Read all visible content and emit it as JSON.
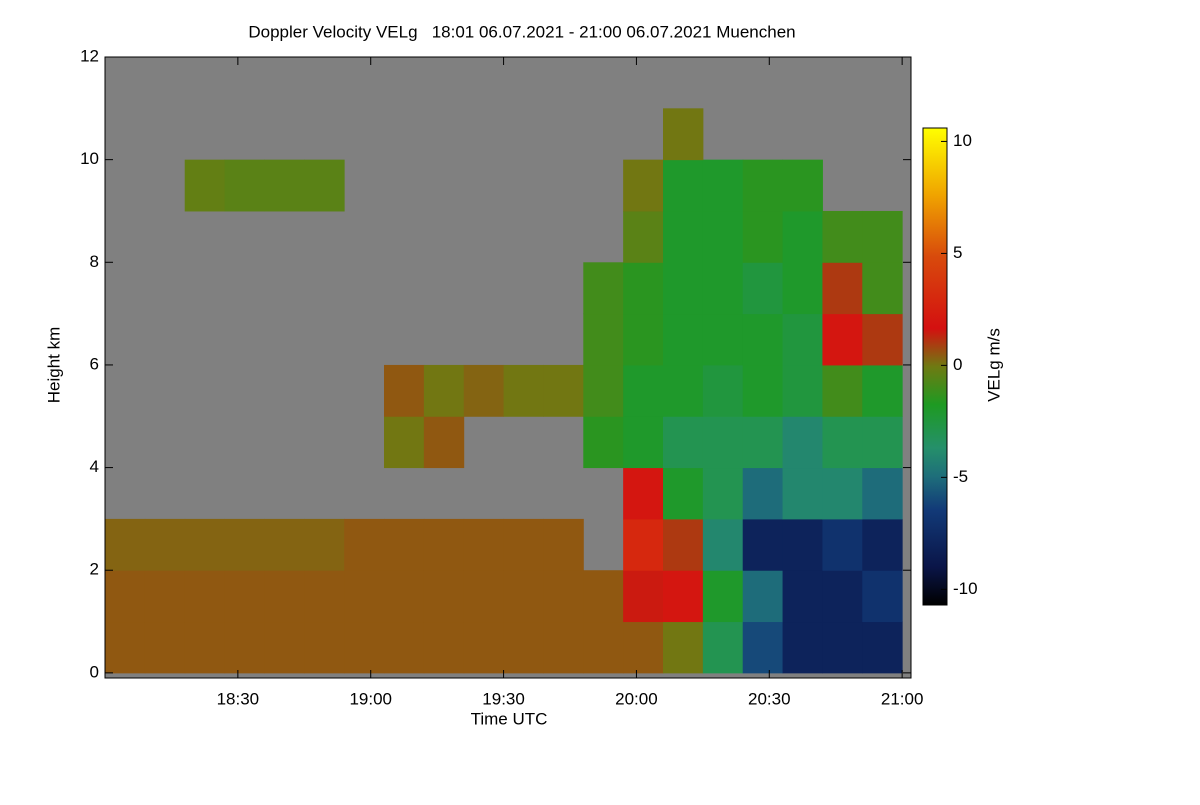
{
  "chart_data": {
    "type": "heatmap",
    "title": "Doppler Velocity VELg   18:01 06.07.2021 - 21:00 06.07.2021 Muenchen",
    "xlabel": "Time UTC",
    "ylabel": "Height km",
    "colorbar_label": "VELg m/s",
    "x_edges": [
      1080,
      1089,
      1098,
      1107,
      1116,
      1125,
      1134,
      1143,
      1152,
      1161,
      1170,
      1179,
      1188,
      1197,
      1206,
      1215,
      1224,
      1233,
      1242,
      1251,
      1260
    ],
    "y_edges": [
      0,
      1,
      2,
      3,
      4,
      5,
      6,
      7,
      8,
      9,
      10,
      11,
      12
    ],
    "z": [
      [
        0.5,
        0.5,
        0.5,
        0.5,
        0.5,
        0.5,
        0.5,
        0.5,
        0.5,
        0.5,
        0.5,
        0.5,
        0.5,
        0.5,
        0,
        -3,
        -6,
        -8,
        -8,
        -8
      ],
      [
        0.5,
        0.5,
        0.5,
        0.5,
        0.5,
        0.5,
        0.5,
        0.5,
        0.5,
        0.5,
        0.5,
        0.5,
        0.5,
        1.5,
        2,
        -2,
        -5,
        -8,
        -8,
        -7
      ],
      [
        0.3,
        0.3,
        0.3,
        0.3,
        0.3,
        0.3,
        0.5,
        0.5,
        0.5,
        0.5,
        0.5,
        0.5,
        null,
        3,
        1,
        -4,
        -8,
        -8,
        -7,
        -8
      ],
      [
        null,
        null,
        null,
        null,
        null,
        null,
        null,
        null,
        null,
        null,
        null,
        null,
        null,
        2,
        -2,
        -3,
        -5,
        -4,
        -4,
        -5
      ],
      [
        null,
        null,
        null,
        null,
        null,
        null,
        null,
        0,
        0.5,
        null,
        null,
        null,
        -1.5,
        -2,
        -3,
        -3,
        -3,
        -4,
        -3,
        -3
      ],
      [
        null,
        null,
        null,
        null,
        null,
        null,
        null,
        0.5,
        0,
        0.3,
        0,
        0,
        -1,
        -2,
        -2,
        -2.5,
        -2,
        -2.5,
        -1,
        -2
      ],
      [
        null,
        null,
        null,
        null,
        null,
        null,
        null,
        null,
        null,
        null,
        null,
        null,
        -1,
        -1.5,
        -2,
        -2,
        -2,
        -2.5,
        2,
        1
      ],
      [
        null,
        null,
        null,
        null,
        null,
        null,
        null,
        null,
        null,
        null,
        null,
        null,
        -1,
        -1.5,
        -2,
        -2,
        -2.5,
        -2,
        1,
        -1
      ],
      [
        null,
        null,
        null,
        null,
        null,
        null,
        null,
        null,
        null,
        null,
        null,
        null,
        null,
        -0.5,
        -2,
        -2,
        -1.5,
        -2,
        -1,
        -1
      ],
      [
        null,
        null,
        -0.3,
        -0.5,
        -0.5,
        -0.5,
        null,
        null,
        null,
        null,
        null,
        null,
        null,
        0,
        -2,
        -2,
        -1.5,
        -1.5,
        null,
        null
      ],
      [
        null,
        null,
        null,
        null,
        null,
        null,
        null,
        null,
        null,
        null,
        null,
        null,
        null,
        null,
        0,
        null,
        null,
        null,
        null,
        null
      ],
      [
        null,
        null,
        null,
        null,
        null,
        null,
        null,
        null,
        null,
        null,
        null,
        null,
        null,
        null,
        null,
        null,
        null,
        null,
        null,
        null
      ]
    ],
    "xlim": [
      1080,
      1262
    ],
    "xticks": [
      {
        "value": 1110,
        "label": "18:30"
      },
      {
        "value": 1140,
        "label": "19:00"
      },
      {
        "value": 1170,
        "label": "19:30"
      },
      {
        "value": 1200,
        "label": "20:00"
      },
      {
        "value": 1230,
        "label": "20:30"
      },
      {
        "value": 1260,
        "label": "21:00"
      }
    ],
    "ylim": [
      -0.1,
      12
    ],
    "yticks": [
      0,
      2,
      4,
      6,
      8,
      10,
      12
    ],
    "clim": [
      -10.7,
      10.6
    ],
    "cticks": [
      -10,
      -5,
      0,
      5,
      10
    ],
    "missing_color": "#808080"
  }
}
